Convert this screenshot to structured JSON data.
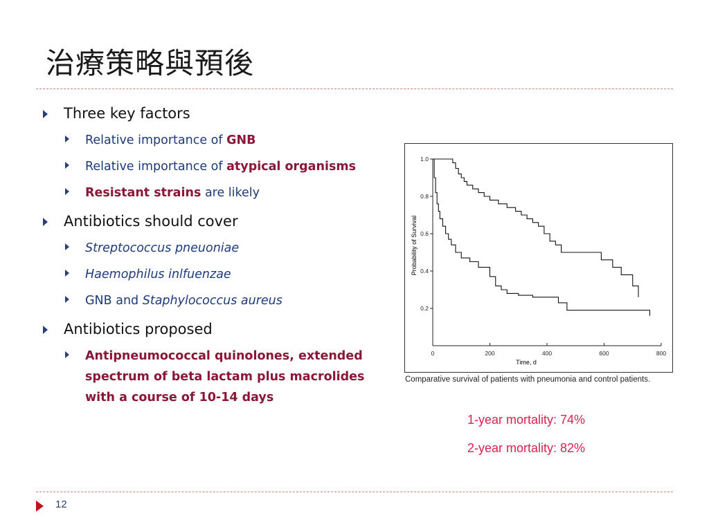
{
  "slide": {
    "title": "治療策略與預後",
    "page_number": "12",
    "colors": {
      "bullet": "#2a3f73",
      "highlight": "#8a1738",
      "mortality": "#d8224f",
      "footer_arrow": "#c0111e"
    }
  },
  "bullets": {
    "b1": {
      "text": "Three key factors",
      "s1": {
        "pre": "Relative importance of ",
        "hl": "GNB"
      },
      "s2": {
        "pre": "Relative importance of ",
        "hl": "atypical organisms"
      },
      "s3": {
        "hl": "Resistant strains",
        "post": " are likely"
      }
    },
    "b2": {
      "text": "Antibiotics should cover",
      "s1": {
        "it": "Streptococcus pneuoniae"
      },
      "s2": {
        "it": "Haemophilus inlfuenzae"
      },
      "s3": {
        "pre": "GNB and ",
        "it": "Staphylococcus aureus"
      }
    },
    "b3": {
      "text": "Antibiotics proposed",
      "s1": {
        "hl": "Antipneumococcal quinolones, extended spectrum of beta lactam plus macrolides with a course of 10-14 days"
      }
    }
  },
  "figure": {
    "caption": "Comparative survival of patients with pneumonia and control patients.",
    "mortality_1": "1-year mortality: 74%",
    "mortality_2": "2-year mortality: 82%"
  },
  "chart_data": {
    "type": "line",
    "xlabel": "Time, d",
    "ylabel": "Probability of Survival",
    "xlim": [
      0,
      800
    ],
    "ylim": [
      0,
      1.0
    ],
    "x_ticks": [
      0,
      200,
      400,
      600,
      800
    ],
    "y_ticks": [
      0.2,
      0.4,
      0.6,
      0.8,
      1.0
    ],
    "x_tick_labels": [
      "0",
      "200",
      "400",
      "600",
      "800"
    ],
    "y_tick_labels": [
      "0.2",
      "0.4",
      "0.6",
      "0.8",
      "1.0"
    ],
    "grid": false,
    "series": [
      {
        "step": true,
        "color": "#111111",
        "points": [
          [
            0,
            1.0
          ],
          [
            60,
            1.0
          ],
          [
            70,
            0.98
          ],
          [
            80,
            0.95
          ],
          [
            90,
            0.92
          ],
          [
            100,
            0.9
          ],
          [
            110,
            0.88
          ],
          [
            120,
            0.86
          ],
          [
            140,
            0.84
          ],
          [
            160,
            0.82
          ],
          [
            180,
            0.8
          ],
          [
            200,
            0.78
          ],
          [
            230,
            0.76
          ],
          [
            260,
            0.74
          ],
          [
            290,
            0.72
          ],
          [
            310,
            0.7
          ],
          [
            330,
            0.68
          ],
          [
            350,
            0.66
          ],
          [
            370,
            0.64
          ],
          [
            390,
            0.6
          ],
          [
            410,
            0.56
          ],
          [
            430,
            0.54
          ],
          [
            450,
            0.5
          ],
          [
            590,
            0.46
          ],
          [
            630,
            0.42
          ],
          [
            660,
            0.38
          ],
          [
            700,
            0.32
          ],
          [
            720,
            0.26
          ]
        ]
      },
      {
        "step": true,
        "color": "#111111",
        "points": [
          [
            0,
            1.0
          ],
          [
            5,
            0.9
          ],
          [
            10,
            0.82
          ],
          [
            15,
            0.76
          ],
          [
            20,
            0.72
          ],
          [
            25,
            0.68
          ],
          [
            35,
            0.64
          ],
          [
            45,
            0.6
          ],
          [
            55,
            0.57
          ],
          [
            65,
            0.54
          ],
          [
            80,
            0.5
          ],
          [
            100,
            0.47
          ],
          [
            130,
            0.45
          ],
          [
            160,
            0.42
          ],
          [
            200,
            0.37
          ],
          [
            220,
            0.32
          ],
          [
            240,
            0.3
          ],
          [
            260,
            0.28
          ],
          [
            300,
            0.27
          ],
          [
            350,
            0.26
          ],
          [
            440,
            0.23
          ],
          [
            470,
            0.19
          ],
          [
            760,
            0.19
          ],
          [
            760,
            0.16
          ]
        ]
      }
    ]
  }
}
